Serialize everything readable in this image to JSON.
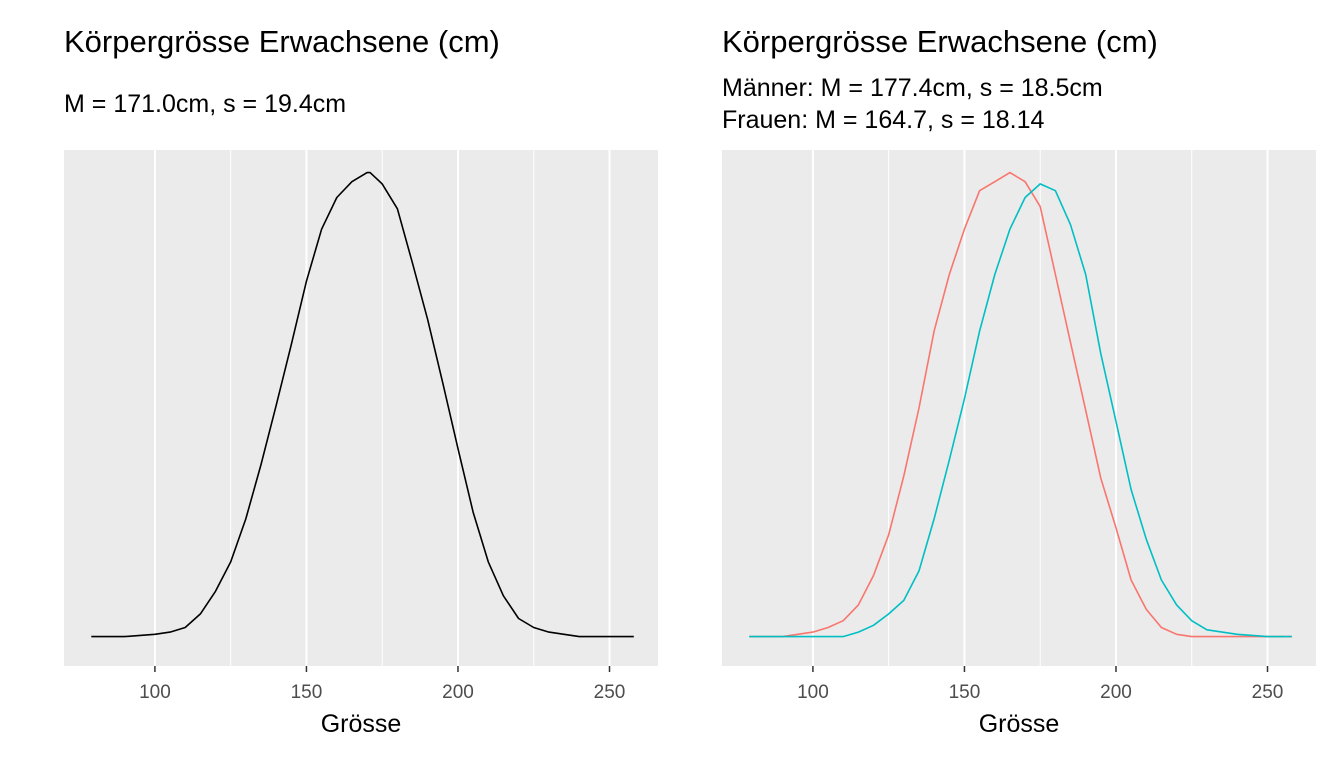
{
  "chart_data": [
    {
      "type": "line",
      "title": "Körpergrösse Erwachsene (cm)",
      "subtitle_lines": [
        "M = 171.0cm, s = 19.4cm"
      ],
      "xlabel": "Grösse",
      "ylabel": "",
      "xlim": [
        70,
        266
      ],
      "ylim": [
        -0.0013,
        0.0215
      ],
      "xticks": [
        100,
        150,
        200,
        250
      ],
      "grid": true,
      "legend": "none",
      "series": [
        {
          "color": "#000000",
          "x": [
            79,
            90,
            100,
            105,
            110,
            115,
            120,
            125,
            130,
            135,
            140,
            145,
            150,
            155,
            160,
            165,
            170,
            171,
            175,
            180,
            185,
            190,
            195,
            200,
            205,
            210,
            215,
            220,
            225,
            230,
            240,
            250,
            258
          ],
          "y": [
            0.0,
            0.0,
            0.0001,
            0.0002,
            0.0004,
            0.001,
            0.002,
            0.0033,
            0.0052,
            0.0076,
            0.0102,
            0.0129,
            0.0157,
            0.018,
            0.0194,
            0.0201,
            0.0205,
            0.0205,
            0.02,
            0.0189,
            0.0165,
            0.014,
            0.0112,
            0.0083,
            0.0055,
            0.0033,
            0.0018,
            0.0008,
            0.0004,
            0.0002,
            0.0,
            0.0,
            0.0
          ]
        }
      ]
    },
    {
      "type": "line",
      "title": "Körpergrösse Erwachsene (cm)",
      "subtitle_lines": [
        "Männer: M = 177.4cm, s = 18.5cm",
        "Frauen: M = 164.7, s = 18.14"
      ],
      "xlabel": "Grösse",
      "ylabel": "",
      "xlim": [
        70,
        266
      ],
      "ylim": [
        -0.0013,
        0.0215
      ],
      "xticks": [
        100,
        150,
        200,
        250
      ],
      "grid": true,
      "legend": "none",
      "series": [
        {
          "color": "#F8766D",
          "x": [
            79,
            90,
            100,
            105,
            110,
            115,
            120,
            125,
            130,
            135,
            140,
            145,
            150,
            155,
            160,
            165,
            170,
            175,
            180,
            185,
            190,
            195,
            200,
            205,
            210,
            215,
            220,
            225,
            230,
            240,
            250,
            258
          ],
          "y": [
            0.0,
            0.0,
            0.0002,
            0.0004,
            0.0007,
            0.0014,
            0.0027,
            0.0045,
            0.0071,
            0.0101,
            0.0135,
            0.016,
            0.018,
            0.0197,
            0.0201,
            0.0205,
            0.0201,
            0.019,
            0.016,
            0.013,
            0.01,
            0.007,
            0.0048,
            0.0025,
            0.0012,
            0.0004,
            0.0001,
            0.0,
            0.0,
            0.0,
            0.0,
            0.0
          ]
        },
        {
          "color": "#00BFC4",
          "x": [
            79,
            90,
            100,
            105,
            110,
            115,
            120,
            125,
            130,
            135,
            140,
            145,
            150,
            155,
            160,
            165,
            170,
            175,
            180,
            185,
            190,
            195,
            200,
            205,
            210,
            215,
            220,
            225,
            230,
            240,
            250,
            258
          ],
          "y": [
            0.0,
            0.0,
            0.0,
            0.0,
            0.0,
            0.0002,
            0.0005,
            0.001,
            0.0016,
            0.0029,
            0.0052,
            0.0078,
            0.0105,
            0.0135,
            0.016,
            0.018,
            0.0194,
            0.02,
            0.0197,
            0.0182,
            0.016,
            0.0125,
            0.0095,
            0.0065,
            0.0043,
            0.0025,
            0.0014,
            0.0007,
            0.0003,
            0.0001,
            0.0,
            0.0
          ]
        }
      ]
    }
  ]
}
